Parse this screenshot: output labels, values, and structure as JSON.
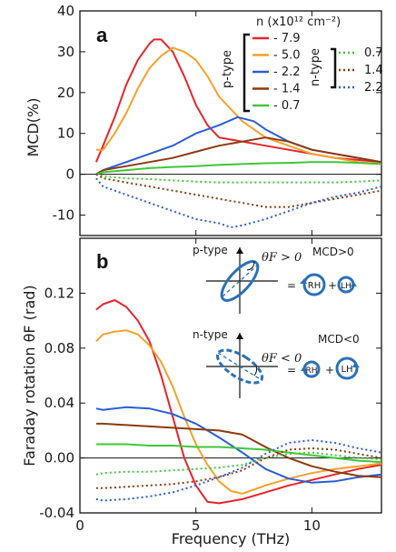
{
  "colors": {
    "red": "#e8232a",
    "orange": "#f7a028",
    "blue": "#2b5cd6",
    "brown": "#8b3a0f",
    "green": "#41c63a",
    "inset": "#2a70b8"
  },
  "labels": {
    "xlabel": "Frequency (THz)",
    "panel_a": "a",
    "panel_b": "b",
    "legend_title": "n (x10¹² cm⁻²)",
    "p_type": "p-type",
    "n_type": "n-type",
    "inset_p_type": "p-type",
    "inset_n_type": "n-type",
    "theta_pos": "θF > 0",
    "theta_neg": "θF < 0",
    "mcd_pos": "MCD>0",
    "mcd_neg": "MCD<0",
    "rh": "RH",
    "lh": "LH",
    "eq": "=",
    "plus": "+"
  },
  "legend": {
    "p": [
      {
        "label": "- 7.9",
        "color": "#e8232a"
      },
      {
        "label": "- 5.0",
        "color": "#f7a028"
      },
      {
        "label": "- 2.2",
        "color": "#2b5cd6"
      },
      {
        "label": "- 1.4",
        "color": "#8b3a0f"
      },
      {
        "label": "- 0.7",
        "color": "#41c63a"
      }
    ],
    "n": [
      {
        "label": "0.7",
        "color": "#41c63a"
      },
      {
        "label": "1.4",
        "color": "#8b3a0f"
      },
      {
        "label": "2.2",
        "color": "#2b5cd6"
      }
    ]
  },
  "chart_data": [
    {
      "type": "line",
      "ylabel": "MCD(%)",
      "xlim": [
        0,
        13
      ],
      "ylim": [
        -15,
        40
      ],
      "xticks": [
        0,
        5,
        10
      ],
      "yticks": [
        -10,
        0,
        10,
        20,
        30,
        40
      ],
      "ytick_labels": [
        "-10",
        "0",
        "10",
        "20",
        "30",
        "40"
      ],
      "series": [
        {
          "name": "- 7.9",
          "color": "#e8232a",
          "dash": "solid",
          "x": [
            0.7,
            1.0,
            1.5,
            2.0,
            2.5,
            3.0,
            3.2,
            3.5,
            4.0,
            4.5,
            5.0,
            5.5,
            6.0,
            7.0,
            8.0,
            9.0,
            10.0,
            11.0,
            12.0,
            13.0
          ],
          "y": [
            3,
            7,
            14,
            22,
            28,
            32,
            33,
            33,
            30,
            24,
            17,
            12,
            9,
            8,
            7,
            6,
            5,
            4,
            3.5,
            3
          ]
        },
        {
          "name": "- 5.0",
          "color": "#f7a028",
          "dash": "solid",
          "x": [
            0.7,
            1.0,
            1.5,
            2.0,
            2.5,
            3.0,
            3.5,
            4.0,
            4.5,
            5.0,
            5.5,
            6.0,
            7.0,
            8.0,
            9.0,
            10.0,
            11.0,
            12.0,
            13.0
          ],
          "y": [
            6,
            6,
            10,
            15,
            21,
            26,
            29,
            31,
            30,
            28,
            24,
            19,
            13,
            9,
            7,
            5,
            4,
            3,
            2.5
          ]
        },
        {
          "name": "- 2.2",
          "color": "#2b5cd6",
          "dash": "solid",
          "x": [
            0.7,
            1.0,
            2.0,
            3.0,
            4.0,
            5.0,
            6.0,
            6.8,
            7.5,
            8.0,
            9.0,
            10.0,
            11.0,
            12.0,
            13.0
          ],
          "y": [
            0,
            1,
            3,
            5,
            7,
            10,
            12,
            14,
            13,
            11,
            8,
            6,
            5,
            4,
            3
          ]
        },
        {
          "name": "- 1.4",
          "color": "#8b3a0f",
          "dash": "solid",
          "x": [
            0.7,
            1.0,
            2.0,
            3.0,
            4.0,
            5.0,
            6.0,
            7.0,
            8.0,
            9.0,
            10.0,
            11.0,
            12.0,
            13.0
          ],
          "y": [
            0,
            1,
            2,
            3,
            4,
            5.5,
            7,
            8,
            9,
            8,
            6,
            5,
            4,
            3
          ]
        },
        {
          "name": "- 0.7",
          "color": "#41c63a",
          "dash": "solid",
          "x": [
            0.7,
            1.0,
            2.0,
            3.0,
            4.0,
            5.0,
            6.0,
            7.0,
            8.0,
            9.0,
            10.0,
            11.0,
            12.0,
            13.0
          ],
          "y": [
            0,
            0.5,
            1,
            1.5,
            1.8,
            2,
            2.3,
            2.5,
            2.7,
            2.8,
            3,
            3,
            2.8,
            2.5
          ]
        },
        {
          "name": "0.7",
          "color": "#41c63a",
          "dash": "dotted",
          "x": [
            0.7,
            1.0,
            2.0,
            3.0,
            4.0,
            5.0,
            6.0,
            7.0,
            8.0,
            9.0,
            10.0,
            11.0,
            12.0,
            13.0
          ],
          "y": [
            0,
            -0.5,
            -1,
            -1.2,
            -1.5,
            -1.8,
            -2,
            -2,
            -2,
            -2,
            -2,
            -2,
            -1.8,
            -1.5
          ]
        },
        {
          "name": "1.4",
          "color": "#8b3a0f",
          "dash": "dotted",
          "x": [
            0.7,
            1.0,
            2.0,
            3.0,
            4.0,
            5.0,
            6.0,
            7.0,
            8.0,
            9.0,
            10.0,
            11.0,
            12.0,
            13.0
          ],
          "y": [
            0,
            -1,
            -2,
            -3,
            -4,
            -5,
            -6,
            -7,
            -8,
            -8,
            -7,
            -6,
            -5,
            -4
          ]
        },
        {
          "name": "2.2",
          "color": "#2b5cd6",
          "dash": "dotted",
          "x": [
            0.7,
            1.0,
            1.5,
            2.0,
            3.0,
            4.0,
            5.0,
            6.0,
            6.5,
            7.0,
            8.0,
            9.0,
            10.0,
            11.0,
            12.0,
            13.0
          ],
          "y": [
            -1,
            -3,
            -4,
            -5,
            -7,
            -9,
            -11,
            -12,
            -13,
            -12.5,
            -11,
            -9,
            -7,
            -5.5,
            -4.5,
            -3
          ]
        }
      ]
    },
    {
      "type": "line",
      "ylabel": "Faraday rotation θF (rad)",
      "xlabel": "Frequency (THz)",
      "xlim": [
        0,
        13
      ],
      "ylim": [
        -0.04,
        0.16
      ],
      "xticks": [
        0,
        5,
        10
      ],
      "xtick_labels": [
        "0",
        "5",
        "10"
      ],
      "yticks": [
        -0.04,
        0.0,
        0.04,
        0.08,
        0.12
      ],
      "ytick_labels": [
        "-0.04",
        "0.00",
        "0.04",
        "0.08",
        "0.12"
      ],
      "series": [
        {
          "name": "- 7.9",
          "color": "#e8232a",
          "dash": "solid",
          "x": [
            0.7,
            1.0,
            1.5,
            2.0,
            2.5,
            3.0,
            3.5,
            4.0,
            4.5,
            5.0,
            5.5,
            6.0,
            7.0,
            8.0,
            9.0,
            10.0,
            11.0,
            12.0,
            13.0
          ],
          "y": [
            0.108,
            0.112,
            0.115,
            0.11,
            0.1,
            0.085,
            0.06,
            0.03,
            0.0,
            -0.02,
            -0.032,
            -0.033,
            -0.03,
            -0.025,
            -0.02,
            -0.016,
            -0.012,
            -0.008,
            -0.005
          ]
        },
        {
          "name": "- 5.0",
          "color": "#f7a028",
          "dash": "solid",
          "x": [
            0.7,
            1.0,
            1.5,
            2.0,
            2.5,
            3.0,
            3.5,
            4.0,
            4.5,
            5.0,
            5.5,
            6.0,
            6.5,
            7.0,
            8.0,
            9.0,
            10.0,
            11.0,
            12.0,
            13.0
          ],
          "y": [
            0.085,
            0.09,
            0.092,
            0.093,
            0.09,
            0.082,
            0.07,
            0.052,
            0.03,
            0.01,
            -0.005,
            -0.017,
            -0.024,
            -0.026,
            -0.02,
            -0.015,
            -0.011,
            -0.008,
            -0.006,
            -0.004
          ]
        },
        {
          "name": "- 2.2",
          "color": "#2b5cd6",
          "dash": "solid",
          "x": [
            0.7,
            1.0,
            2.0,
            3.0,
            4.0,
            5.0,
            6.0,
            7.0,
            8.0,
            9.0,
            10.0,
            11.0,
            12.0,
            13.0
          ],
          "y": [
            0.036,
            0.035,
            0.037,
            0.036,
            0.032,
            0.025,
            0.015,
            0.004,
            -0.008,
            -0.015,
            -0.018,
            -0.017,
            -0.014,
            -0.012
          ]
        },
        {
          "name": "- 1.4",
          "color": "#8b3a0f",
          "dash": "solid",
          "x": [
            0.7,
            1.0,
            2.0,
            3.0,
            4.0,
            5.0,
            6.0,
            7.0,
            8.0,
            9.0,
            10.0,
            11.0,
            12.0,
            13.0
          ],
          "y": [
            0.025,
            0.025,
            0.024,
            0.023,
            0.022,
            0.021,
            0.02,
            0.017,
            0.008,
            0.0,
            -0.006,
            -0.01,
            -0.013,
            -0.014
          ]
        },
        {
          "name": "- 0.7",
          "color": "#41c63a",
          "dash": "solid",
          "x": [
            0.7,
            1.0,
            2.0,
            3.0,
            4.0,
            5.0,
            6.0,
            7.0,
            8.0,
            9.0,
            10.0,
            11.0,
            12.0,
            13.0
          ],
          "y": [
            0.01,
            0.01,
            0.01,
            0.009,
            0.009,
            0.008,
            0.008,
            0.007,
            0.006,
            0.004,
            0.002,
            0.0,
            -0.002,
            -0.003
          ]
        },
        {
          "name": "0.7",
          "color": "#41c63a",
          "dash": "dotted",
          "x": [
            0.7,
            1.0,
            2.0,
            3.0,
            4.0,
            5.0,
            6.0,
            7.0,
            8.0,
            9.0,
            10.0,
            11.0,
            12.0,
            13.0
          ],
          "y": [
            -0.012,
            -0.011,
            -0.01,
            -0.01,
            -0.009,
            -0.008,
            -0.007,
            -0.005,
            0.0,
            0.003,
            0.004,
            0.002,
            0.0,
            -0.001
          ]
        },
        {
          "name": "1.4",
          "color": "#8b3a0f",
          "dash": "dotted",
          "x": [
            0.7,
            1.0,
            2.0,
            3.0,
            4.0,
            5.0,
            6.0,
            7.0,
            8.0,
            9.0,
            10.0,
            11.0,
            12.0,
            13.0
          ],
          "y": [
            -0.022,
            -0.022,
            -0.021,
            -0.02,
            -0.019,
            -0.017,
            -0.014,
            -0.009,
            0.0,
            0.006,
            0.007,
            0.006,
            0.003,
            0.0
          ]
        },
        {
          "name": "2.2",
          "color": "#2b5cd6",
          "dash": "dotted",
          "x": [
            0.7,
            1.0,
            2.0,
            3.0,
            4.0,
            5.0,
            6.0,
            7.0,
            8.0,
            9.0,
            10.0,
            11.0,
            12.0,
            13.0
          ],
          "y": [
            -0.03,
            -0.031,
            -0.03,
            -0.028,
            -0.025,
            -0.02,
            -0.014,
            -0.007,
            0.003,
            0.011,
            0.013,
            0.011,
            0.007,
            0.004
          ]
        }
      ]
    }
  ]
}
